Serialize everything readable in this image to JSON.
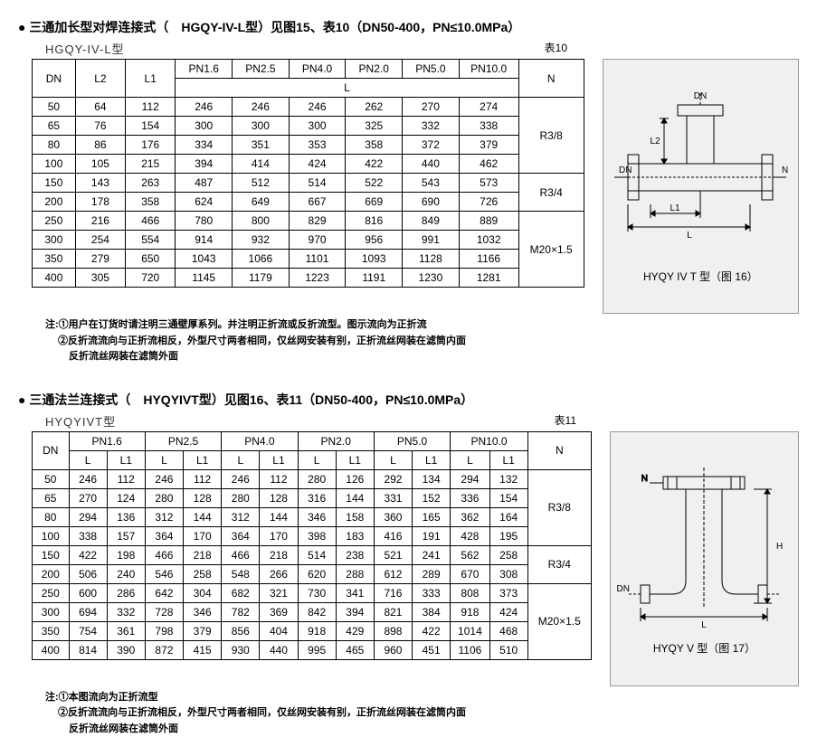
{
  "sec1": {
    "title": "三通加长型对焊连接式（　HGQY-IV-L型）见图15、表10（DN50-400，PN≤10.0MPa）",
    "subtitle": "HGQY-IV-L型",
    "tablelabel": "表10",
    "cols": {
      "dn": "DN",
      "l2": "L2",
      "l1": "L1",
      "pn16": "PN1.6",
      "pn25": "PN2.5",
      "pn40": "PN4.0",
      "pn20": "PN2.0",
      "pn50": "PN5.0",
      "pn100": "PN10.0",
      "l": "L",
      "n": "N"
    },
    "rows": [
      {
        "dn": "50",
        "l2": "64",
        "l1": "112",
        "v": [
          "246",
          "246",
          "246",
          "262",
          "270",
          "274"
        ]
      },
      {
        "dn": "65",
        "l2": "76",
        "l1": "154",
        "v": [
          "300",
          "300",
          "300",
          "325",
          "332",
          "338"
        ]
      },
      {
        "dn": "80",
        "l2": "86",
        "l1": "176",
        "v": [
          "334",
          "351",
          "353",
          "358",
          "372",
          "379"
        ]
      },
      {
        "dn": "100",
        "l2": "105",
        "l1": "215",
        "v": [
          "394",
          "414",
          "424",
          "422",
          "440",
          "462"
        ]
      },
      {
        "dn": "150",
        "l2": "143",
        "l1": "263",
        "v": [
          "487",
          "512",
          "514",
          "522",
          "543",
          "573"
        ]
      },
      {
        "dn": "200",
        "l2": "178",
        "l1": "358",
        "v": [
          "624",
          "649",
          "667",
          "669",
          "690",
          "726"
        ]
      },
      {
        "dn": "250",
        "l2": "216",
        "l1": "466",
        "v": [
          "780",
          "800",
          "829",
          "816",
          "849",
          "889"
        ]
      },
      {
        "dn": "300",
        "l2": "254",
        "l1": "554",
        "v": [
          "914",
          "932",
          "970",
          "956",
          "991",
          "1032"
        ]
      },
      {
        "dn": "350",
        "l2": "279",
        "l1": "650",
        "v": [
          "1043",
          "1066",
          "1101",
          "1093",
          "1128",
          "1166"
        ]
      },
      {
        "dn": "400",
        "l2": "305",
        "l1": "720",
        "v": [
          "1145",
          "1179",
          "1223",
          "1191",
          "1230",
          "1281"
        ]
      }
    ],
    "ngroups": [
      "R3/8",
      "R3/4",
      "M20×1.5"
    ],
    "notes": [
      "注:①用户在订货时请注明三通壁厚系列。并注明正折流或反折流型。图示流向为正折流",
      "②反折流流向与正折流相反，外型尺寸两者相同，仅丝网安装有别，正折流丝网装在滤筒内面",
      "反折流丝网装在滤筒外面"
    ],
    "diagcap": "HYQY IV T 型（图 16）",
    "diaglabels": {
      "dn": "DN",
      "l2": "L2",
      "l1": "L1",
      "l": "L",
      "n": "N"
    }
  },
  "sec2": {
    "title": "三通法兰连接式（　HYQYIVT型）见图16、表11（DN50-400，PN≤10.0MPa）",
    "subtitle": "HYQYIVT型",
    "tablelabel": "表11",
    "cols": {
      "dn": "DN",
      "pn16": "PN1.6",
      "pn25": "PN2.5",
      "pn40": "PN4.0",
      "pn20": "PN2.0",
      "pn50": "PN5.0",
      "pn100": "PN10.0",
      "l": "L",
      "l1": "L1",
      "n": "N"
    },
    "rows": [
      {
        "dn": "50",
        "v": [
          "246",
          "112",
          "246",
          "112",
          "246",
          "112",
          "280",
          "126",
          "292",
          "134",
          "294",
          "132"
        ]
      },
      {
        "dn": "65",
        "v": [
          "270",
          "124",
          "280",
          "128",
          "280",
          "128",
          "316",
          "144",
          "331",
          "152",
          "336",
          "154"
        ]
      },
      {
        "dn": "80",
        "v": [
          "294",
          "136",
          "312",
          "144",
          "312",
          "144",
          "346",
          "158",
          "360",
          "165",
          "362",
          "164"
        ]
      },
      {
        "dn": "100",
        "v": [
          "338",
          "157",
          "364",
          "170",
          "364",
          "170",
          "398",
          "183",
          "416",
          "191",
          "428",
          "195"
        ]
      },
      {
        "dn": "150",
        "v": [
          "422",
          "198",
          "466",
          "218",
          "466",
          "218",
          "514",
          "238",
          "521",
          "241",
          "562",
          "258"
        ]
      },
      {
        "dn": "200",
        "v": [
          "506",
          "240",
          "546",
          "258",
          "548",
          "266",
          "620",
          "288",
          "612",
          "289",
          "670",
          "308"
        ]
      },
      {
        "dn": "250",
        "v": [
          "600",
          "286",
          "642",
          "304",
          "682",
          "321",
          "730",
          "341",
          "716",
          "333",
          "808",
          "373"
        ]
      },
      {
        "dn": "300",
        "v": [
          "694",
          "332",
          "728",
          "346",
          "782",
          "369",
          "842",
          "394",
          "821",
          "384",
          "918",
          "424"
        ]
      },
      {
        "dn": "350",
        "v": [
          "754",
          "361",
          "798",
          "379",
          "856",
          "404",
          "918",
          "429",
          "898",
          "422",
          "1014",
          "468"
        ]
      },
      {
        "dn": "400",
        "v": [
          "814",
          "390",
          "872",
          "415",
          "930",
          "440",
          "995",
          "465",
          "960",
          "451",
          "1106",
          "510"
        ]
      }
    ],
    "ngroups": [
      "R3/8",
      "R3/4",
      "M20×1.5"
    ],
    "notes": [
      "注:①本图流向为正折流型",
      "②反折流流向与正折流相反，外型尺寸两者相同，仅丝网安装有别，正折流丝网装在滤筒内面",
      "反折流丝网装在滤筒外面"
    ],
    "diagcap": "HYQY V 型（图 17）",
    "diaglabels": {
      "dn": "DN",
      "l": "L",
      "n": "N",
      "h": "H"
    }
  },
  "style": {
    "border": "#000000",
    "bg": "#ffffff",
    "diagbg": "#f0f0f0"
  }
}
